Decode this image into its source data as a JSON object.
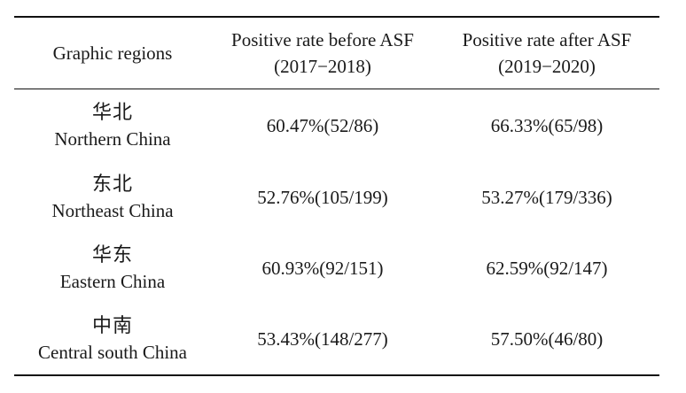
{
  "table": {
    "headers": [
      {
        "line1": "Graphic regions",
        "line2": ""
      },
      {
        "line1": "Positive rate before ASF",
        "line2": "(2017−2018)"
      },
      {
        "line1": "Positive rate after ASF",
        "line2": "(2019−2020)"
      }
    ],
    "rows": [
      {
        "region_cn": "华北",
        "region_en": "Northern China",
        "before": "60.47%(52/86)",
        "after": "66.33%(65/98)"
      },
      {
        "region_cn": "东北",
        "region_en": "Northeast China",
        "before": "52.76%(105/199)",
        "after": "53.27%(179/336)"
      },
      {
        "region_cn": "华东",
        "region_en": "Eastern China",
        "before": "60.93%(92/151)",
        "after": "62.59%(92/147)"
      },
      {
        "region_cn": "中南",
        "region_en": "Central south China",
        "before": "53.43%(148/277)",
        "after": "57.50%(46/80)"
      }
    ]
  }
}
